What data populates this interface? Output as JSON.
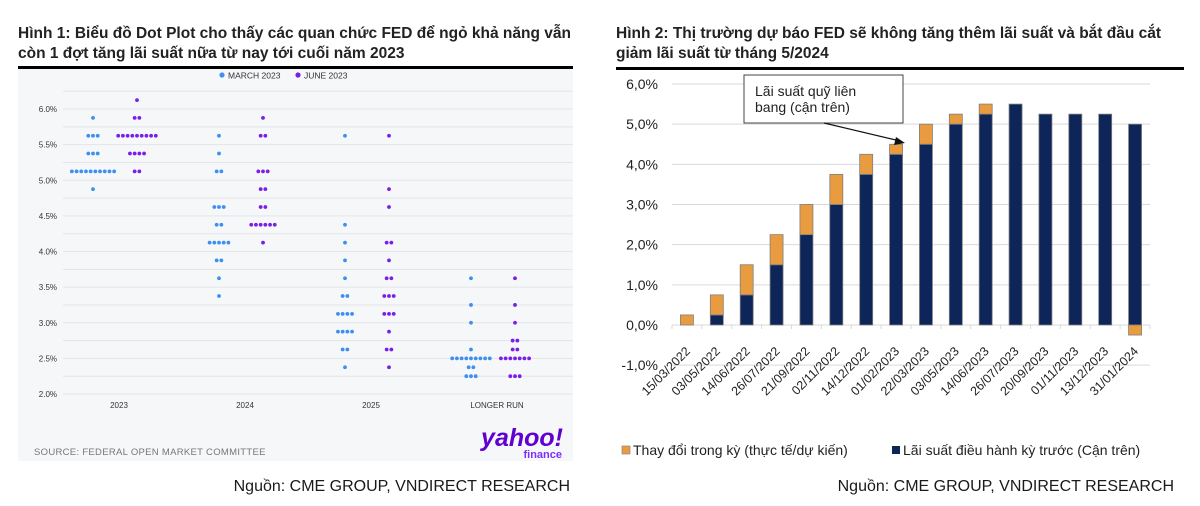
{
  "figure1": {
    "title": "Hình 1: Biểu đồ Dot Plot cho thấy các quan chức FED để ngỏ khả năng vẫn còn 1 đợt tăng lãi suất nữa từ nay tới cuối năm 2023",
    "chart_source": "SOURCE: FEDERAL OPEN MARKET COMMITTEE",
    "logo_main": "yahoo!",
    "logo_sub": "finance",
    "source": "Nguồn: CME GROUP, VNDIRECT RESEARCH",
    "colors": {
      "march": "#3d8ff0",
      "june": "#7a1fe8",
      "background": "#f6f7f9"
    }
  },
  "figure2": {
    "title": "Hình 2: Thị trường dự báo FED sẽ không tăng thêm lãi suất và bắt đầu cắt giảm lãi suất từ tháng 5/2024",
    "annotation": [
      "Lãi suất quỹ liên",
      "bang (cận trên)"
    ],
    "source": "Nguồn: CME GROUP, VNDIRECT RESEARCH",
    "colors": {
      "change": "#e99b40",
      "base": "#0d2558"
    }
  },
  "chart_data": [
    {
      "type": "scatter",
      "subtype": "dot-plot",
      "title": "",
      "xlabel": "",
      "ylabel": "",
      "ylim": [
        2.0,
        6.25
      ],
      "y_ticks": [
        2.0,
        2.5,
        3.0,
        3.5,
        4.0,
        4.5,
        5.0,
        5.5,
        6.0
      ],
      "y_tick_labels": [
        "2.0%",
        "2.5%",
        "3.0%",
        "3.5%",
        "4.0%",
        "4.5%",
        "5.0%",
        "5.5%",
        "6.0%"
      ],
      "grid": true,
      "legend": {
        "position": "top-center",
        "entries": [
          "MARCH 2023",
          "JUNE 2023"
        ]
      },
      "categories": [
        "2023",
        "2024",
        "2025",
        "LONGER RUN"
      ],
      "series": [
        {
          "name": "MARCH 2023",
          "dots": {
            "2023": [
              [
                5.875,
                1
              ],
              [
                5.625,
                3
              ],
              [
                5.375,
                3
              ],
              [
                5.125,
                10
              ],
              [
                4.875,
                1
              ]
            ],
            "2024": [
              [
                5.625,
                1
              ],
              [
                5.375,
                1
              ],
              [
                5.125,
                2
              ],
              [
                4.625,
                3
              ],
              [
                4.375,
                2
              ],
              [
                4.125,
                5
              ],
              [
                3.875,
                2
              ],
              [
                3.625,
                1
              ],
              [
                3.375,
                1
              ]
            ],
            "2025": [
              [
                5.625,
                1
              ],
              [
                4.375,
                1
              ],
              [
                4.125,
                1
              ],
              [
                3.875,
                1
              ],
              [
                3.625,
                1
              ],
              [
                3.375,
                2
              ],
              [
                3.125,
                4
              ],
              [
                2.875,
                4
              ],
              [
                2.625,
                2
              ],
              [
                2.375,
                1
              ]
            ],
            "LONGER RUN": [
              [
                3.625,
                1
              ],
              [
                3.25,
                1
              ],
              [
                3.0,
                1
              ],
              [
                2.625,
                1
              ],
              [
                2.5,
                9
              ],
              [
                2.375,
                2
              ],
              [
                2.25,
                3
              ]
            ]
          }
        },
        {
          "name": "JUNE 2023",
          "dots": {
            "2023": [
              [
                6.125,
                1
              ],
              [
                5.875,
                2
              ],
              [
                5.625,
                9
              ],
              [
                5.375,
                4
              ],
              [
                5.125,
                2
              ]
            ],
            "2024": [
              [
                5.875,
                1
              ],
              [
                5.625,
                2
              ],
              [
                5.125,
                3
              ],
              [
                4.875,
                2
              ],
              [
                4.625,
                2
              ],
              [
                4.375,
                6
              ],
              [
                4.125,
                1
              ]
            ],
            "2025": [
              [
                5.625,
                1
              ],
              [
                4.875,
                1
              ],
              [
                4.625,
                1
              ],
              [
                4.125,
                2
              ],
              [
                3.875,
                1
              ],
              [
                3.625,
                2
              ],
              [
                3.375,
                3
              ],
              [
                3.125,
                3
              ],
              [
                2.875,
                1
              ],
              [
                2.625,
                2
              ],
              [
                2.375,
                1
              ]
            ],
            "LONGER RUN": [
              [
                3.625,
                1
              ],
              [
                3.25,
                1
              ],
              [
                3.0,
                1
              ],
              [
                2.75,
                2
              ],
              [
                2.625,
                2
              ],
              [
                2.5,
                7
              ],
              [
                2.25,
                3
              ]
            ]
          }
        }
      ]
    },
    {
      "type": "bar",
      "stacked": true,
      "title": "",
      "xlabel": "",
      "ylabel": "",
      "ylim": [
        -1.0,
        6.0
      ],
      "y_ticks": [
        -1,
        0,
        1,
        2,
        3,
        4,
        5,
        6
      ],
      "y_tick_labels": [
        "-1,0%",
        "0,0%",
        "1,0%",
        "2,0%",
        "3,0%",
        "4,0%",
        "5,0%",
        "6,0%"
      ],
      "grid": true,
      "legend": {
        "position": "bottom",
        "entries": [
          "Thay đổi trong kỳ (thực tế/dự kiến)",
          "Lãi suất điều hành kỳ trước (Cận trên)"
        ]
      },
      "categories": [
        "15/03/2022",
        "03/05/2022",
        "14/06/2022",
        "26/07/2022",
        "21/09/2022",
        "02/11/2022",
        "14/12/2022",
        "01/02/2023",
        "22/03/2023",
        "03/05/2023",
        "14/06/2023",
        "26/07/2023",
        "20/09/2023",
        "01/11/2023",
        "13/12/2023",
        "31/01/2024"
      ],
      "series": [
        {
          "name": "Lãi suất điều hành kỳ trước (Cận trên)",
          "values": [
            0.0,
            0.25,
            0.75,
            1.5,
            2.25,
            3.0,
            3.75,
            4.25,
            4.5,
            5.0,
            5.25,
            5.5,
            5.25,
            5.25,
            5.25,
            5.0
          ]
        },
        {
          "name": "Thay đổi trong kỳ (thực tế/dự kiến)",
          "values": [
            0.25,
            0.5,
            0.75,
            0.75,
            0.75,
            0.75,
            0.5,
            0.25,
            0.5,
            0.25,
            0.25,
            0.0,
            0.0,
            0.0,
            0.0,
            -0.25
          ]
        }
      ],
      "annotations": [
        {
          "text": "Lãi suất quỹ liên bang (cận trên)",
          "points_to": "01/02/2023"
        }
      ]
    }
  ]
}
